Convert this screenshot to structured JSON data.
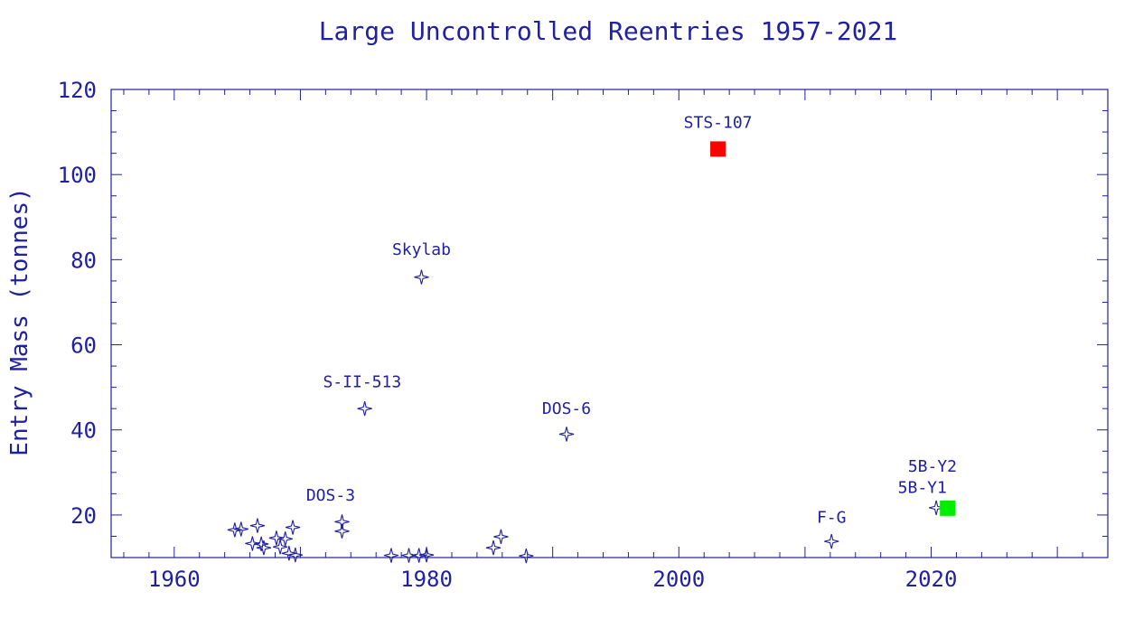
{
  "chart_data": {
    "type": "scatter",
    "title": "Large Uncontrolled Reentries 1957-2021",
    "xlabel": "",
    "ylabel": "Entry Mass (tonnes)",
    "xlim": [
      1955,
      2034
    ],
    "ylim": [
      10,
      120
    ],
    "x_ticks": [
      1960,
      1980,
      2000,
      2020
    ],
    "y_ticks": [
      20,
      40,
      60,
      80,
      100,
      120
    ],
    "grid": false,
    "colors": {
      "axis": "#2020a0",
      "text": "#2020a0",
      "star": "#2020a0",
      "sts": "#ff0000",
      "long_march": "#00ee00"
    },
    "series": [
      {
        "marker": "star",
        "points": [
          {
            "x": 1964.8,
            "y": 16.5
          },
          {
            "x": 1965.3,
            "y": 16.7
          },
          {
            "x": 1966.2,
            "y": 13.3
          },
          {
            "x": 1966.6,
            "y": 17.5
          },
          {
            "x": 1966.9,
            "y": 13.2
          },
          {
            "x": 1967.1,
            "y": 12.3
          },
          {
            "x": 1968.1,
            "y": 14.6
          },
          {
            "x": 1968.4,
            "y": 12.5
          },
          {
            "x": 1968.8,
            "y": 14.4
          },
          {
            "x": 1969.1,
            "y": 11.0
          },
          {
            "x": 1969.4,
            "y": 17.1
          },
          {
            "x": 1969.6,
            "y": 10.6
          },
          {
            "x": 1973.3,
            "y": 18.4
          },
          {
            "x": 1973.3,
            "y": 16.2
          },
          {
            "x": 1975.1,
            "y": 45.0
          },
          {
            "x": 1977.2,
            "y": 10.5
          },
          {
            "x": 1978.6,
            "y": 10.5
          },
          {
            "x": 1979.4,
            "y": 10.5
          },
          {
            "x": 1979.6,
            "y": 75.9
          },
          {
            "x": 1980.0,
            "y": 10.6
          },
          {
            "x": 1985.3,
            "y": 12.3
          },
          {
            "x": 1985.9,
            "y": 14.9
          },
          {
            "x": 1987.9,
            "y": 10.4
          },
          {
            "x": 1991.1,
            "y": 39.0
          },
          {
            "x": 2012.1,
            "y": 13.8
          },
          {
            "x": 2020.4,
            "y": 21.7
          }
        ]
      },
      {
        "marker": "square",
        "color": "#ff0000",
        "points": [
          {
            "x": 2003.1,
            "y": 106.0
          }
        ]
      },
      {
        "marker": "square",
        "color": "#00ee00",
        "points": [
          {
            "x": 2021.3,
            "y": 21.6
          }
        ]
      }
    ],
    "annotations": [
      {
        "text": "STS-107",
        "x": 2003.1,
        "y": 111.0
      },
      {
        "text": "Skylab",
        "x": 1979.6,
        "y": 81.1
      },
      {
        "text": "S-II-513",
        "x": 1974.9,
        "y": 50.0
      },
      {
        "text": "DOS-6",
        "x": 1991.1,
        "y": 43.8
      },
      {
        "text": "DOS-3",
        "x": 1972.4,
        "y": 23.4
      },
      {
        "text": "5B-Y2",
        "x": 2020.1,
        "y": 30.2
      },
      {
        "text": "5B-Y1",
        "x": 2019.3,
        "y": 25.2
      },
      {
        "text": "F-G",
        "x": 2012.1,
        "y": 18.2
      }
    ]
  }
}
